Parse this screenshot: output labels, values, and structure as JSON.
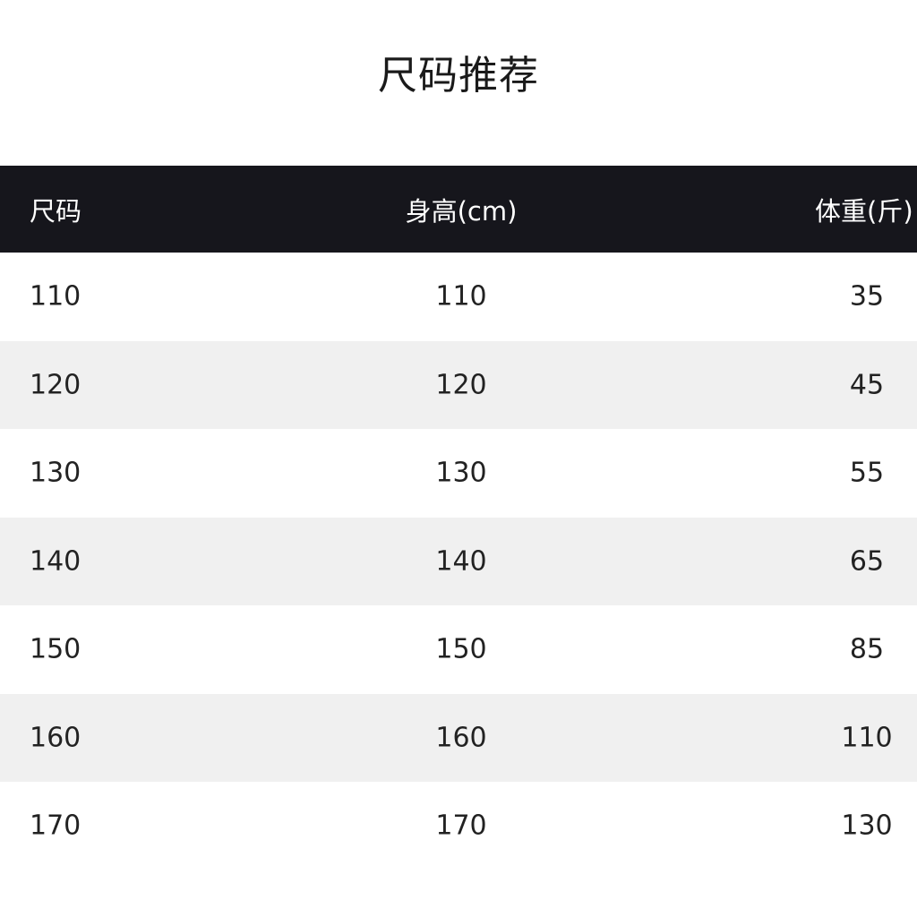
{
  "title": "尺码推荐",
  "table": {
    "headers": [
      "尺码",
      "身高(cm)",
      "体重(斤)"
    ],
    "rows": [
      [
        "110",
        "110",
        "35"
      ],
      [
        "120",
        "120",
        "45"
      ],
      [
        "130",
        "130",
        "55"
      ],
      [
        "140",
        "140",
        "65"
      ],
      [
        "150",
        "150",
        "85"
      ],
      [
        "160",
        "160",
        "110"
      ],
      [
        "170",
        "170",
        "130"
      ]
    ]
  },
  "colors": {
    "header_bg": "#16161c",
    "stripe_bg": "#f0f0f0"
  }
}
